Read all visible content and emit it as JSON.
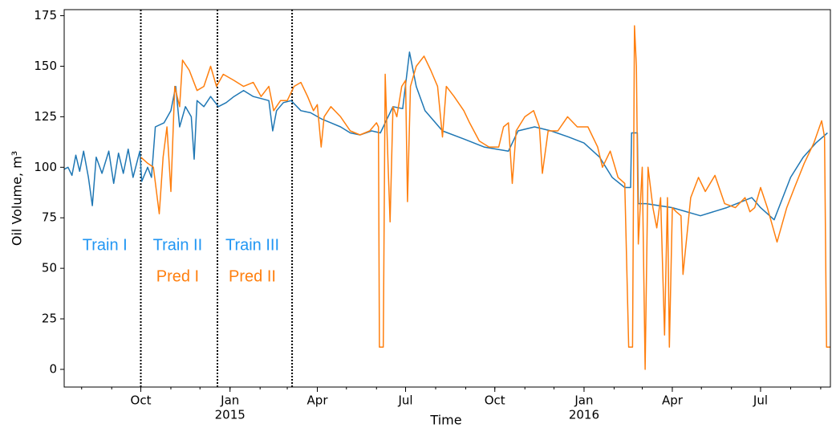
{
  "chart_data": {
    "type": "line",
    "xlabel": "Time",
    "ylabel": "Oil Volume, m³",
    "xlim": [
      "2014-07-14",
      "2016-09-11"
    ],
    "ylim": [
      -8.75,
      178
    ],
    "yticks": [
      0,
      25,
      50,
      75,
      100,
      125,
      150,
      175
    ],
    "xticks": [
      {
        "value": "2014-10-01",
        "label": "Oct"
      },
      {
        "value": "2015-01-01",
        "label": "Jan",
        "year": "2015"
      },
      {
        "value": "2015-04-01",
        "label": "Apr"
      },
      {
        "value": "2015-07-01",
        "label": "Jul"
      },
      {
        "value": "2015-10-01",
        "label": "Oct"
      },
      {
        "value": "2016-01-01",
        "label": "Jan",
        "year": "2016"
      },
      {
        "value": "2016-04-01",
        "label": "Apr"
      },
      {
        "value": "2016-07-01",
        "label": "Jul"
      }
    ],
    "vlines": [
      "2014-10-01",
      "2014-12-19",
      "2015-03-06"
    ],
    "annotations": [
      {
        "text": "Train I",
        "x": "2014-08-25",
        "y": 61,
        "color": "#2196f3"
      },
      {
        "text": "Train II",
        "x": "2014-11-08",
        "y": 61,
        "color": "#2196f3"
      },
      {
        "text": "Pred I",
        "x": "2014-11-08",
        "y": 45.5,
        "color": "#ff7f0e"
      },
      {
        "text": "Train III",
        "x": "2015-01-24",
        "y": 61,
        "color": "#2196f3"
      },
      {
        "text": "Pred II",
        "x": "2015-01-24",
        "y": 45.5,
        "color": "#ff7f0e"
      }
    ],
    "series": [
      {
        "color": "#1f77b4",
        "x": [
          "2014-07-14",
          "2014-07-18",
          "2014-07-22",
          "2014-07-26",
          "2014-07-30",
          "2014-08-03",
          "2014-08-08",
          "2014-08-12",
          "2014-08-16",
          "2014-08-22",
          "2014-08-29",
          "2014-09-03",
          "2014-09-08",
          "2014-09-13",
          "2014-09-18",
          "2014-09-23",
          "2014-09-30",
          "2014-10-02",
          "2014-10-08",
          "2014-10-12",
          "2014-10-16",
          "2014-10-25",
          "2014-11-01",
          "2014-11-06",
          "2014-11-10",
          "2014-11-16",
          "2014-11-22",
          "2014-11-25",
          "2014-11-28",
          "2014-12-05",
          "2014-12-12",
          "2014-12-20",
          "2014-12-28",
          "2015-01-05",
          "2015-01-15",
          "2015-01-25",
          "2015-02-02",
          "2015-02-10",
          "2015-02-14",
          "2015-02-18",
          "2015-02-25",
          "2015-03-05",
          "2015-03-15",
          "2015-03-25",
          "2015-04-05",
          "2015-04-15",
          "2015-04-25",
          "2015-05-05",
          "2015-05-15",
          "2015-05-27",
          "2015-06-05",
          "2015-06-10",
          "2015-06-18",
          "2015-06-28",
          "2015-07-05",
          "2015-07-12",
          "2015-07-21",
          "2015-08-08",
          "2015-08-30",
          "2015-09-20",
          "2015-10-15",
          "2015-10-25",
          "2015-11-11",
          "2015-11-28",
          "2015-12-16",
          "2016-01-01",
          "2016-01-17",
          "2016-01-30",
          "2016-02-12",
          "2016-02-18",
          "2016-02-19",
          "2016-02-25",
          "2016-02-26",
          "2016-03-05",
          "2016-04-01",
          "2016-04-30",
          "2016-05-27",
          "2016-06-22",
          "2016-07-01",
          "2016-07-15",
          "2016-08-01",
          "2016-08-14",
          "2016-08-27",
          "2016-09-08"
        ],
        "values": [
          99,
          100,
          96,
          106,
          98,
          108,
          95,
          81,
          105,
          97,
          108,
          92,
          107,
          97,
          109,
          95,
          108,
          93,
          100,
          95,
          120,
          122,
          128,
          140,
          120,
          130,
          125,
          104,
          133,
          130,
          135,
          130,
          132,
          135,
          138,
          135,
          134,
          133,
          118,
          128,
          132,
          133,
          128,
          127,
          124,
          122,
          120,
          117,
          116,
          118,
          117,
          122,
          130,
          129,
          157,
          140,
          128,
          118,
          114,
          110,
          108,
          118,
          120,
          118,
          115,
          112,
          105,
          95,
          90,
          90,
          117,
          117,
          82,
          82,
          80,
          76,
          80,
          85,
          80,
          74,
          95,
          105,
          112,
          117
        ]
      },
      {
        "color": "#ff7f0e",
        "x": [
          "2014-10-01",
          "2014-10-08",
          "2014-10-14",
          "2014-10-20",
          "2014-10-24",
          "2014-10-28",
          "2014-11-01",
          "2014-11-05",
          "2014-11-10",
          "2014-11-13",
          "2014-11-20",
          "2014-11-28",
          "2014-12-05",
          "2014-12-12",
          "2014-12-18",
          "2014-12-25",
          "2015-01-05",
          "2015-01-15",
          "2015-01-25",
          "2015-02-02",
          "2015-02-10",
          "2015-02-15",
          "2015-02-22",
          "2015-03-01",
          "2015-03-08",
          "2015-03-15",
          "2015-03-22",
          "2015-03-28",
          "2015-04-01",
          "2015-04-05",
          "2015-04-08",
          "2015-04-15",
          "2015-04-25",
          "2015-05-05",
          "2015-05-15",
          "2015-05-25",
          "2015-06-01",
          "2015-06-03",
          "2015-06-04",
          "2015-06-08",
          "2015-06-10",
          "2015-06-13",
          "2015-06-15",
          "2015-06-18",
          "2015-06-22",
          "2015-06-27",
          "2015-07-01",
          "2015-07-03",
          "2015-07-06",
          "2015-07-12",
          "2015-07-20",
          "2015-07-27",
          "2015-08-03",
          "2015-08-08",
          "2015-08-12",
          "2015-08-20",
          "2015-08-30",
          "2015-09-05",
          "2015-09-15",
          "2015-09-25",
          "2015-10-05",
          "2015-10-10",
          "2015-10-15",
          "2015-10-19",
          "2015-10-23",
          "2015-11-01",
          "2015-11-10",
          "2015-11-16",
          "2015-11-19",
          "2015-11-25",
          "2015-12-05",
          "2015-12-15",
          "2015-12-25",
          "2016-01-05",
          "2016-01-15",
          "2016-01-20",
          "2016-01-28",
          "2016-02-05",
          "2016-02-12",
          "2016-02-16",
          "2016-02-20",
          "2016-02-22",
          "2016-02-24",
          "2016-02-26",
          "2016-03-01",
          "2016-03-04",
          "2016-03-07",
          "2016-03-12",
          "2016-03-16",
          "2016-03-20",
          "2016-03-24",
          "2016-03-27",
          "2016-03-29",
          "2016-04-01",
          "2016-04-05",
          "2016-04-10",
          "2016-04-12",
          "2016-04-20",
          "2016-04-28",
          "2016-05-05",
          "2016-05-15",
          "2016-05-25",
          "2016-06-05",
          "2016-06-15",
          "2016-06-20",
          "2016-06-25",
          "2016-07-01",
          "2016-07-08",
          "2016-07-18",
          "2016-07-28",
          "2016-08-05",
          "2016-08-15",
          "2016-08-25",
          "2016-09-02",
          "2016-09-05",
          "2016-09-07",
          "2016-09-11"
        ],
        "values": [
          105,
          102,
          100,
          77,
          105,
          120,
          88,
          140,
          130,
          153,
          148,
          138,
          140,
          150,
          140,
          146,
          143,
          140,
          142,
          135,
          140,
          128,
          133,
          133,
          140,
          142,
          135,
          128,
          131,
          110,
          125,
          130,
          125,
          118,
          116,
          118,
          122,
          120,
          11,
          11,
          146,
          100,
          73,
          130,
          125,
          140,
          143,
          83,
          140,
          150,
          155,
          148,
          140,
          115,
          140,
          135,
          128,
          122,
          113,
          110,
          110,
          120,
          122,
          92,
          118,
          125,
          128,
          120,
          97,
          118,
          118,
          125,
          120,
          120,
          110,
          100,
          108,
          95,
          92,
          11,
          11,
          170,
          150,
          62,
          100,
          0,
          100,
          80,
          70,
          85,
          17,
          85,
          11,
          80,
          78,
          76,
          47,
          85,
          95,
          88,
          96,
          82,
          80,
          85,
          78,
          80,
          90,
          80,
          63,
          80,
          90,
          102,
          112,
          123,
          115,
          11,
          11
        ]
      }
    ]
  }
}
